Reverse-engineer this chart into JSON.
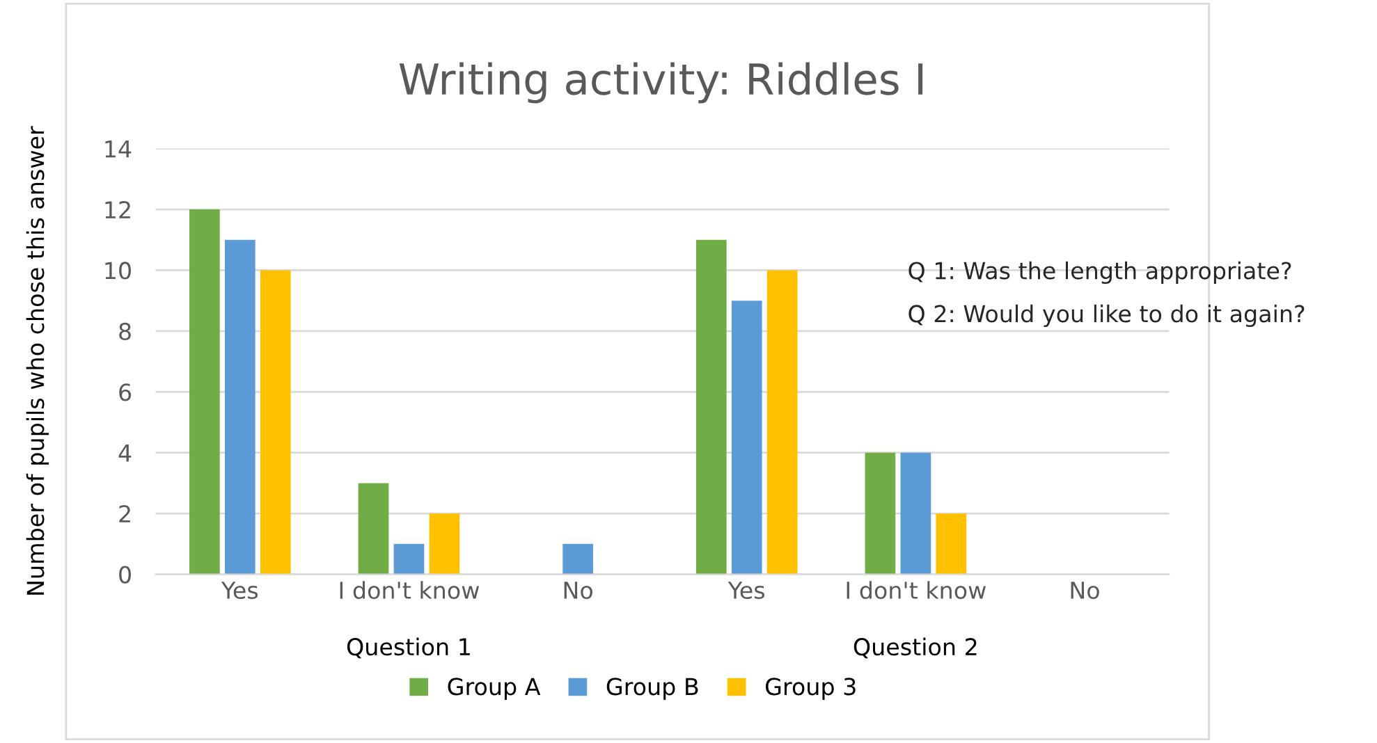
{
  "chart_data": {
    "type": "bar",
    "title": "Writing activity: Riddles I",
    "ylabel": "Number of pupils who chose this answer",
    "categories": [
      "Yes",
      "I don't know",
      "No",
      "Yes",
      "I don't know",
      "No"
    ],
    "series": [
      {
        "name": "Group A",
        "color": "#70ad47",
        "values": [
          12,
          3,
          0,
          11,
          4,
          0
        ]
      },
      {
        "name": "Group B",
        "color": "#5b9bd5",
        "values": [
          11,
          1,
          1,
          9,
          4,
          0
        ]
      },
      {
        "name": "Group 3",
        "color": "#ffc000",
        "values": [
          10,
          2,
          0,
          10,
          2,
          0
        ]
      }
    ],
    "annotations": [
      "Question 1",
      "Question 2",
      "Q 1: Was the length appropriate?",
      "Q 2: Would you like to do it again?"
    ],
    "ylim": [
      0,
      14
    ],
    "yticks": [
      0,
      2,
      4,
      6,
      8,
      10,
      12,
      14
    ],
    "grid": "y",
    "legend": "bottom"
  }
}
